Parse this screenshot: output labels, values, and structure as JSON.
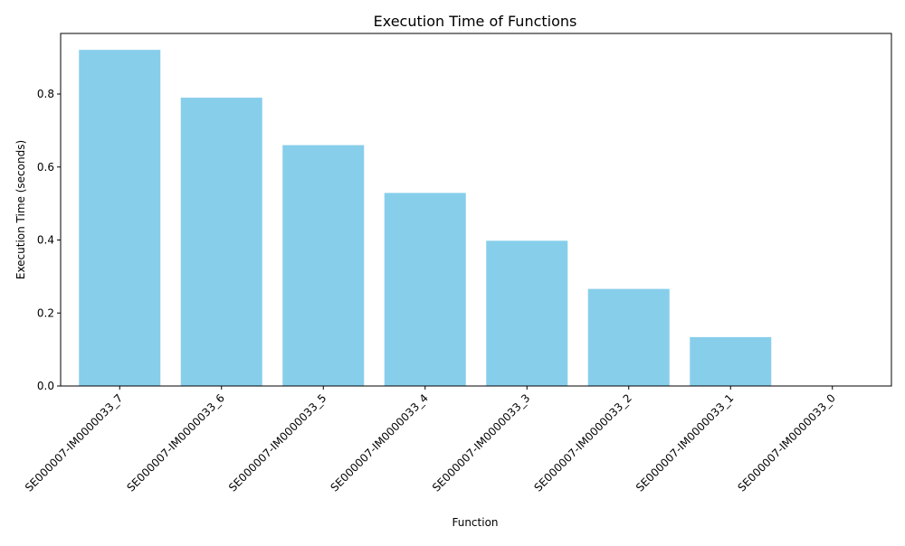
{
  "chart_data": {
    "type": "bar",
    "title": "Execution Time of Functions",
    "xlabel": "Function",
    "ylabel": "Execution Time (seconds)",
    "categories": [
      "SE000007-IM0000033_7",
      "SE000007-IM0000033_6",
      "SE000007-IM0000033_5",
      "SE000007-IM0000033_4",
      "SE000007-IM0000033_3",
      "SE000007-IM0000033_2",
      "SE000007-IM0000033_1",
      "SE000007-IM0000033_0"
    ],
    "values": [
      0.921,
      0.79,
      0.66,
      0.529,
      0.398,
      0.266,
      0.134,
      0.0
    ],
    "ylim": [
      0,
      0.966
    ],
    "yticks": [
      0.0,
      0.2,
      0.4,
      0.6,
      0.8
    ],
    "ytick_labels": [
      "0.0",
      "0.2",
      "0.4",
      "0.6",
      "0.8"
    ],
    "bar_color": "#87CEEB",
    "grid": false,
    "legend": "none"
  }
}
